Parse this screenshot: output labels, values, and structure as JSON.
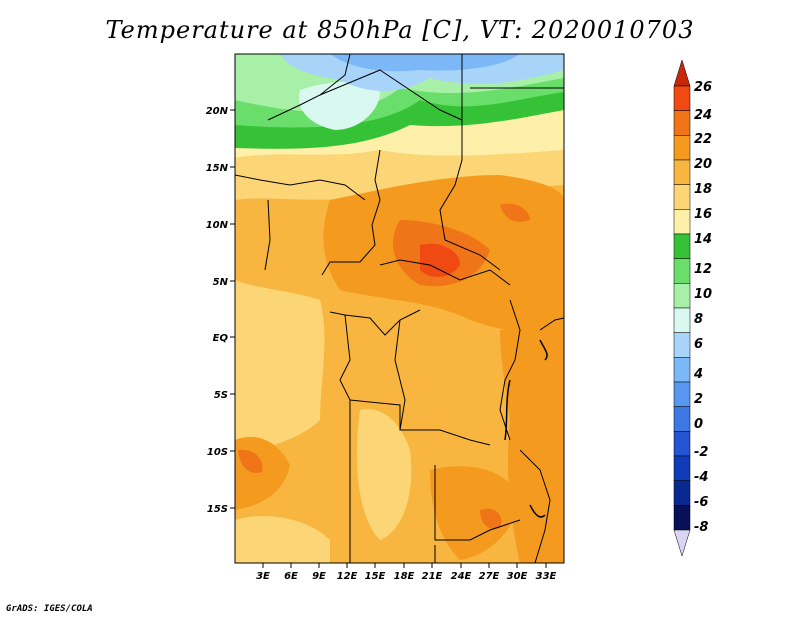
{
  "title": "Temperature at 850hPa [C], VT: 2020010703",
  "footer": "GrADS: IGES/COLA",
  "lat_labels": [
    "20N",
    "15N",
    "10N",
    "5N",
    "EQ",
    "5S",
    "10S",
    "15S"
  ],
  "lon_labels": [
    "3E",
    "6E",
    "9E",
    "12E",
    "15E",
    "18E",
    "21E",
    "24E",
    "27E",
    "30E",
    "33E"
  ],
  "colorbar": {
    "levels": [
      "26",
      "24",
      "22",
      "20",
      "18",
      "16",
      "14",
      "12",
      "10",
      "8",
      "6",
      "4",
      "2",
      "0",
      "-2",
      "-4",
      "-6",
      "-8"
    ],
    "colors": [
      "#e8280e",
      "#f04a12",
      "#f07418",
      "#f49a1e",
      "#f8b640",
      "#fcd676",
      "#fef0a8",
      "#36c236",
      "#6ade6a",
      "#a8f0a8",
      "#d8f8f0",
      "#a8d4fa",
      "#7cb8f8",
      "#5898f0",
      "#3c78e4",
      "#2454d2",
      "#103cb8",
      "#082a90",
      "#08105a",
      "#d8d6f4"
    ]
  },
  "chart_data": {
    "type": "heatmap",
    "title": "Temperature at 850hPa [C], VT: 2020010703",
    "variable": "Temperature at 850hPa",
    "units": "C",
    "valid_time": "2020010703",
    "lon_range_deg_E": [
      0,
      35
    ],
    "lat_range_deg": [
      -20,
      24
    ],
    "lon_ticks": [
      "3E",
      "6E",
      "9E",
      "12E",
      "15E",
      "18E",
      "21E",
      "24E",
      "27E",
      "30E",
      "33E"
    ],
    "lat_ticks": [
      "20N",
      "15N",
      "10N",
      "5N",
      "EQ",
      "5S",
      "10S",
      "15S"
    ],
    "colorbar_levels": [
      26,
      24,
      22,
      20,
      18,
      16,
      14,
      12,
      10,
      8,
      6,
      4,
      2,
      0,
      -2,
      -4,
      -6,
      -8
    ]
  }
}
